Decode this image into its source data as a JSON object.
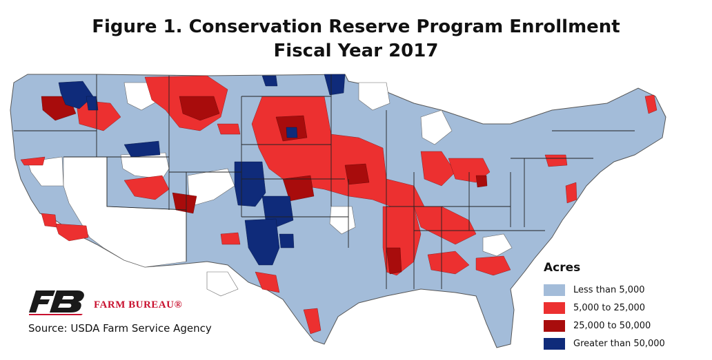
{
  "title": {
    "line1": "Figure 1. Conservation Reserve Program Enrollment",
    "line2": "Fiscal Year 2017"
  },
  "legend": {
    "title": "Acres",
    "items": [
      {
        "label": "Less than 5,000",
        "color": "#a3bcd9"
      },
      {
        "label": "5,000 to 25,000",
        "color": "#ec3030"
      },
      {
        "label": "25,000 to 50,000",
        "color": "#a80c0c"
      },
      {
        "label": "Greater than 50,000",
        "color": "#0f2b7a"
      }
    ]
  },
  "branding": {
    "name": "FARM BUREAU®",
    "name_color": "#c8102e",
    "logo_color": "#1a1a1a",
    "logo_accent": "#c8102e"
  },
  "source": "Source: USDA Farm Service Agency",
  "map_colors": {
    "no_enrollment": "#ffffff",
    "border": "#555555",
    "state_line": "#222222"
  },
  "map_data": {
    "type": "choropleth",
    "geography": "United States counties (contiguous)",
    "variable": "CRP enrolled acres",
    "classes": [
      "Less than 5,000",
      "5,000 to 25,000",
      "25,000 to 50,000",
      "Greater than 50,000"
    ]
  }
}
